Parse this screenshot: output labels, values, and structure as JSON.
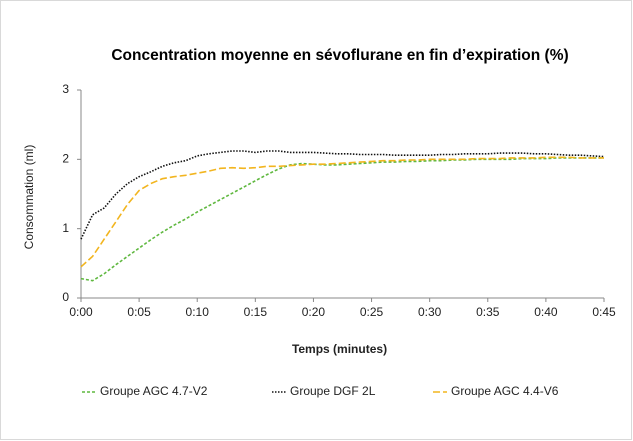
{
  "chart_data": {
    "type": "line",
    "title": "Concentration moyenne en sévoflurane en fin d’expiration (%)",
    "x_label": "Temps (minutes)",
    "y_label": "Consommation (ml)",
    "x": [
      0,
      1,
      2,
      3,
      4,
      5,
      6,
      7,
      8,
      9,
      10,
      11,
      12,
      13,
      14,
      15,
      16,
      17,
      18,
      19,
      20,
      21,
      22,
      23,
      24,
      25,
      26,
      27,
      28,
      29,
      30,
      31,
      32,
      33,
      34,
      35,
      36,
      37,
      38,
      39,
      40,
      41,
      42,
      43,
      44,
      45
    ],
    "xlim": [
      0,
      45
    ],
    "xticks": [
      {
        "value": 0,
        "label": "0:00"
      },
      {
        "value": 5,
        "label": "0:05"
      },
      {
        "value": 10,
        "label": "0:10"
      },
      {
        "value": 15,
        "label": "0:15"
      },
      {
        "value": 20,
        "label": "0:20"
      },
      {
        "value": 25,
        "label": "0:25"
      },
      {
        "value": 30,
        "label": "0:30"
      },
      {
        "value": 35,
        "label": "0:35"
      },
      {
        "value": 40,
        "label": "0:40"
      },
      {
        "value": 45,
        "label": "0:45"
      }
    ],
    "ylim": [
      0,
      3
    ],
    "yticks": [
      0,
      1,
      2,
      3
    ],
    "grid": false,
    "legend": "bottom",
    "series": [
      {
        "name": "Groupe AGC 4.7-V2",
        "color": "#5fb83f",
        "dash": "dashed",
        "values": [
          0.28,
          0.25,
          0.35,
          0.48,
          0.6,
          0.72,
          0.84,
          0.95,
          1.05,
          1.14,
          1.24,
          1.33,
          1.42,
          1.51,
          1.6,
          1.69,
          1.78,
          1.86,
          1.92,
          1.94,
          1.93,
          1.92,
          1.92,
          1.93,
          1.94,
          1.95,
          1.96,
          1.96,
          1.97,
          1.97,
          1.98,
          1.98,
          1.99,
          1.99,
          2.0,
          2.0,
          2.0,
          2.0,
          2.01,
          2.01,
          2.01,
          2.02,
          2.02,
          2.02,
          2.02,
          2.02
        ]
      },
      {
        "name": "Groupe DGF 2L",
        "color": "#111111",
        "dash": "dotted",
        "values": [
          0.85,
          1.2,
          1.3,
          1.5,
          1.65,
          1.75,
          1.82,
          1.9,
          1.95,
          1.98,
          2.05,
          2.08,
          2.1,
          2.12,
          2.12,
          2.1,
          2.12,
          2.12,
          2.1,
          2.1,
          2.1,
          2.09,
          2.08,
          2.08,
          2.07,
          2.07,
          2.07,
          2.06,
          2.06,
          2.06,
          2.06,
          2.07,
          2.07,
          2.08,
          2.08,
          2.08,
          2.09,
          2.09,
          2.09,
          2.08,
          2.08,
          2.07,
          2.06,
          2.06,
          2.05,
          2.04
        ]
      },
      {
        "name": "Groupe AGC 4.4-V6",
        "color": "#f2b51f",
        "dash": "long-dashed",
        "values": [
          0.45,
          0.6,
          0.85,
          1.1,
          1.35,
          1.55,
          1.65,
          1.72,
          1.75,
          1.77,
          1.8,
          1.83,
          1.87,
          1.88,
          1.87,
          1.88,
          1.9,
          1.9,
          1.91,
          1.92,
          1.93,
          1.93,
          1.94,
          1.95,
          1.96,
          1.97,
          1.98,
          1.98,
          1.99,
          1.99,
          2.0,
          2.0,
          2.0,
          2.0,
          2.01,
          2.01,
          2.01,
          2.02,
          2.02,
          2.02,
          2.03,
          2.03,
          2.03,
          2.02,
          2.02,
          2.02
        ]
      }
    ]
  }
}
